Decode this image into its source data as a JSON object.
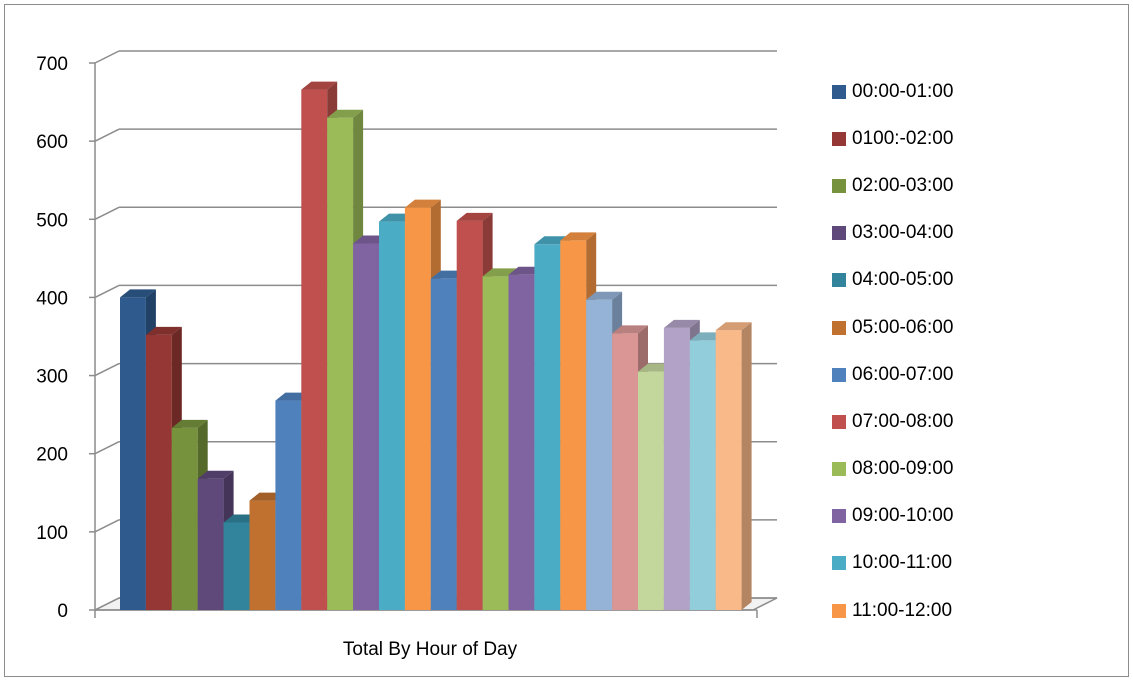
{
  "chart_data": {
    "type": "bar",
    "style": "3d-clustered-column",
    "categories": [
      "Total By Hour of Day"
    ],
    "xlabel": "",
    "ylim": [
      0,
      700
    ],
    "yticks": [
      0,
      100,
      200,
      300,
      400,
      500,
      600,
      700
    ],
    "grid": true,
    "legend_position": "right",
    "series": [
      {
        "name": "00:00-01:00",
        "values": [
          400
        ],
        "color": "#2e5a8e"
      },
      {
        "name": "0100:-02:00",
        "values": [
          352
        ],
        "color": "#953734"
      },
      {
        "name": "02:00-03:00",
        "values": [
          233
        ],
        "color": "#76923c"
      },
      {
        "name": "03:00-04:00",
        "values": [
          168
        ],
        "color": "#5f497a"
      },
      {
        "name": "04:00-05:00",
        "values": [
          112
        ],
        "color": "#31849b"
      },
      {
        "name": "05:00-06:00",
        "values": [
          140
        ],
        "color": "#c0702f"
      },
      {
        "name": "06:00-07:00",
        "values": [
          268
        ],
        "color": "#4f81bd"
      },
      {
        "name": "07:00-08:00",
        "values": [
          666
        ],
        "color": "#c0504d"
      },
      {
        "name": "08:00-09:00",
        "values": [
          630
        ],
        "color": "#9bbb59"
      },
      {
        "name": "09:00-10:00",
        "values": [
          469
        ],
        "color": "#8064a2"
      },
      {
        "name": "10:00-11:00",
        "values": [
          497
        ],
        "color": "#4bacc6"
      },
      {
        "name": "11:00-12:00",
        "values": [
          515
        ],
        "color": "#f79646"
      },
      {
        "values": [
          424
        ],
        "color": "#4f81bd"
      },
      {
        "values": [
          498
        ],
        "color": "#c0504d"
      },
      {
        "values": [
          427
        ],
        "color": "#9bbb59"
      },
      {
        "values": [
          429
        ],
        "color": "#8064a2"
      },
      {
        "values": [
          468
        ],
        "color": "#4bacc6"
      },
      {
        "values": [
          473
        ],
        "color": "#f79646"
      },
      {
        "values": [
          397
        ],
        "color": "#95b3d7"
      },
      {
        "values": [
          354
        ],
        "color": "#d99694"
      },
      {
        "values": [
          305
        ],
        "color": "#c3d69b"
      },
      {
        "values": [
          361
        ],
        "color": "#b2a2c7"
      },
      {
        "values": [
          345
        ],
        "color": "#92cddc"
      },
      {
        "values": [
          358
        ],
        "color": "#fab988"
      }
    ]
  }
}
